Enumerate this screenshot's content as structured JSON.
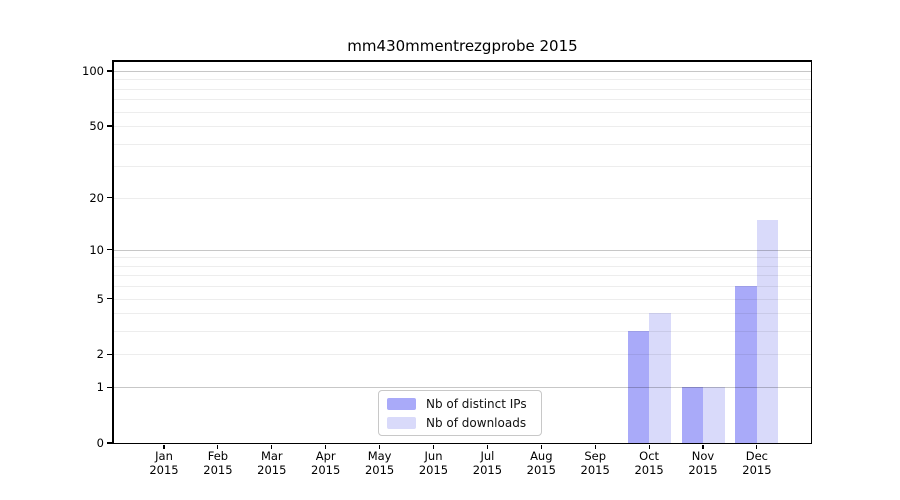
{
  "chart_data": {
    "type": "bar",
    "title": "mm430mmentrezgprobe 2015",
    "categories": [
      "Jan",
      "Feb",
      "Mar",
      "Apr",
      "May",
      "Jun",
      "Jul",
      "Aug",
      "Sep",
      "Oct",
      "Nov",
      "Dec"
    ],
    "category_year": "2015",
    "series": [
      {
        "name": "Nb of distinct IPs",
        "color": "#a9aaf9",
        "values": [
          0,
          0,
          0,
          0,
          0,
          0,
          0,
          0,
          0,
          3,
          1,
          6
        ]
      },
      {
        "name": "Nb of downloads",
        "color": "#d9dafa",
        "values": [
          0,
          0,
          0,
          0,
          0,
          0,
          0,
          0,
          0,
          4,
          1,
          15
        ]
      }
    ],
    "y_axis": {
      "scale": "log10(1+v)",
      "tick_labels": [
        "0",
        "1",
        "2",
        "5",
        "10",
        "20",
        "50",
        "100"
      ],
      "tick_values": [
        0,
        1,
        2,
        5,
        10,
        20,
        50,
        100
      ],
      "major_gridlines": [
        1,
        10,
        100
      ],
      "minor_gridlines": [
        2,
        3,
        4,
        5,
        6,
        7,
        8,
        9,
        20,
        30,
        40,
        50,
        60,
        70,
        80,
        90
      ],
      "range_bottom": 0,
      "range_top_value_at_axis_top": 113
    },
    "legend": {
      "entries": [
        "Nb of distinct IPs",
        "Nb of downloads"
      ],
      "position": "bottom-center"
    },
    "grid": true,
    "colors": {
      "major_grid": "rgba(0,0,0,0.22)",
      "minor_grid": "rgba(0,0,0,0.07)",
      "spine": "#000000",
      "background": "#ffffff"
    }
  }
}
